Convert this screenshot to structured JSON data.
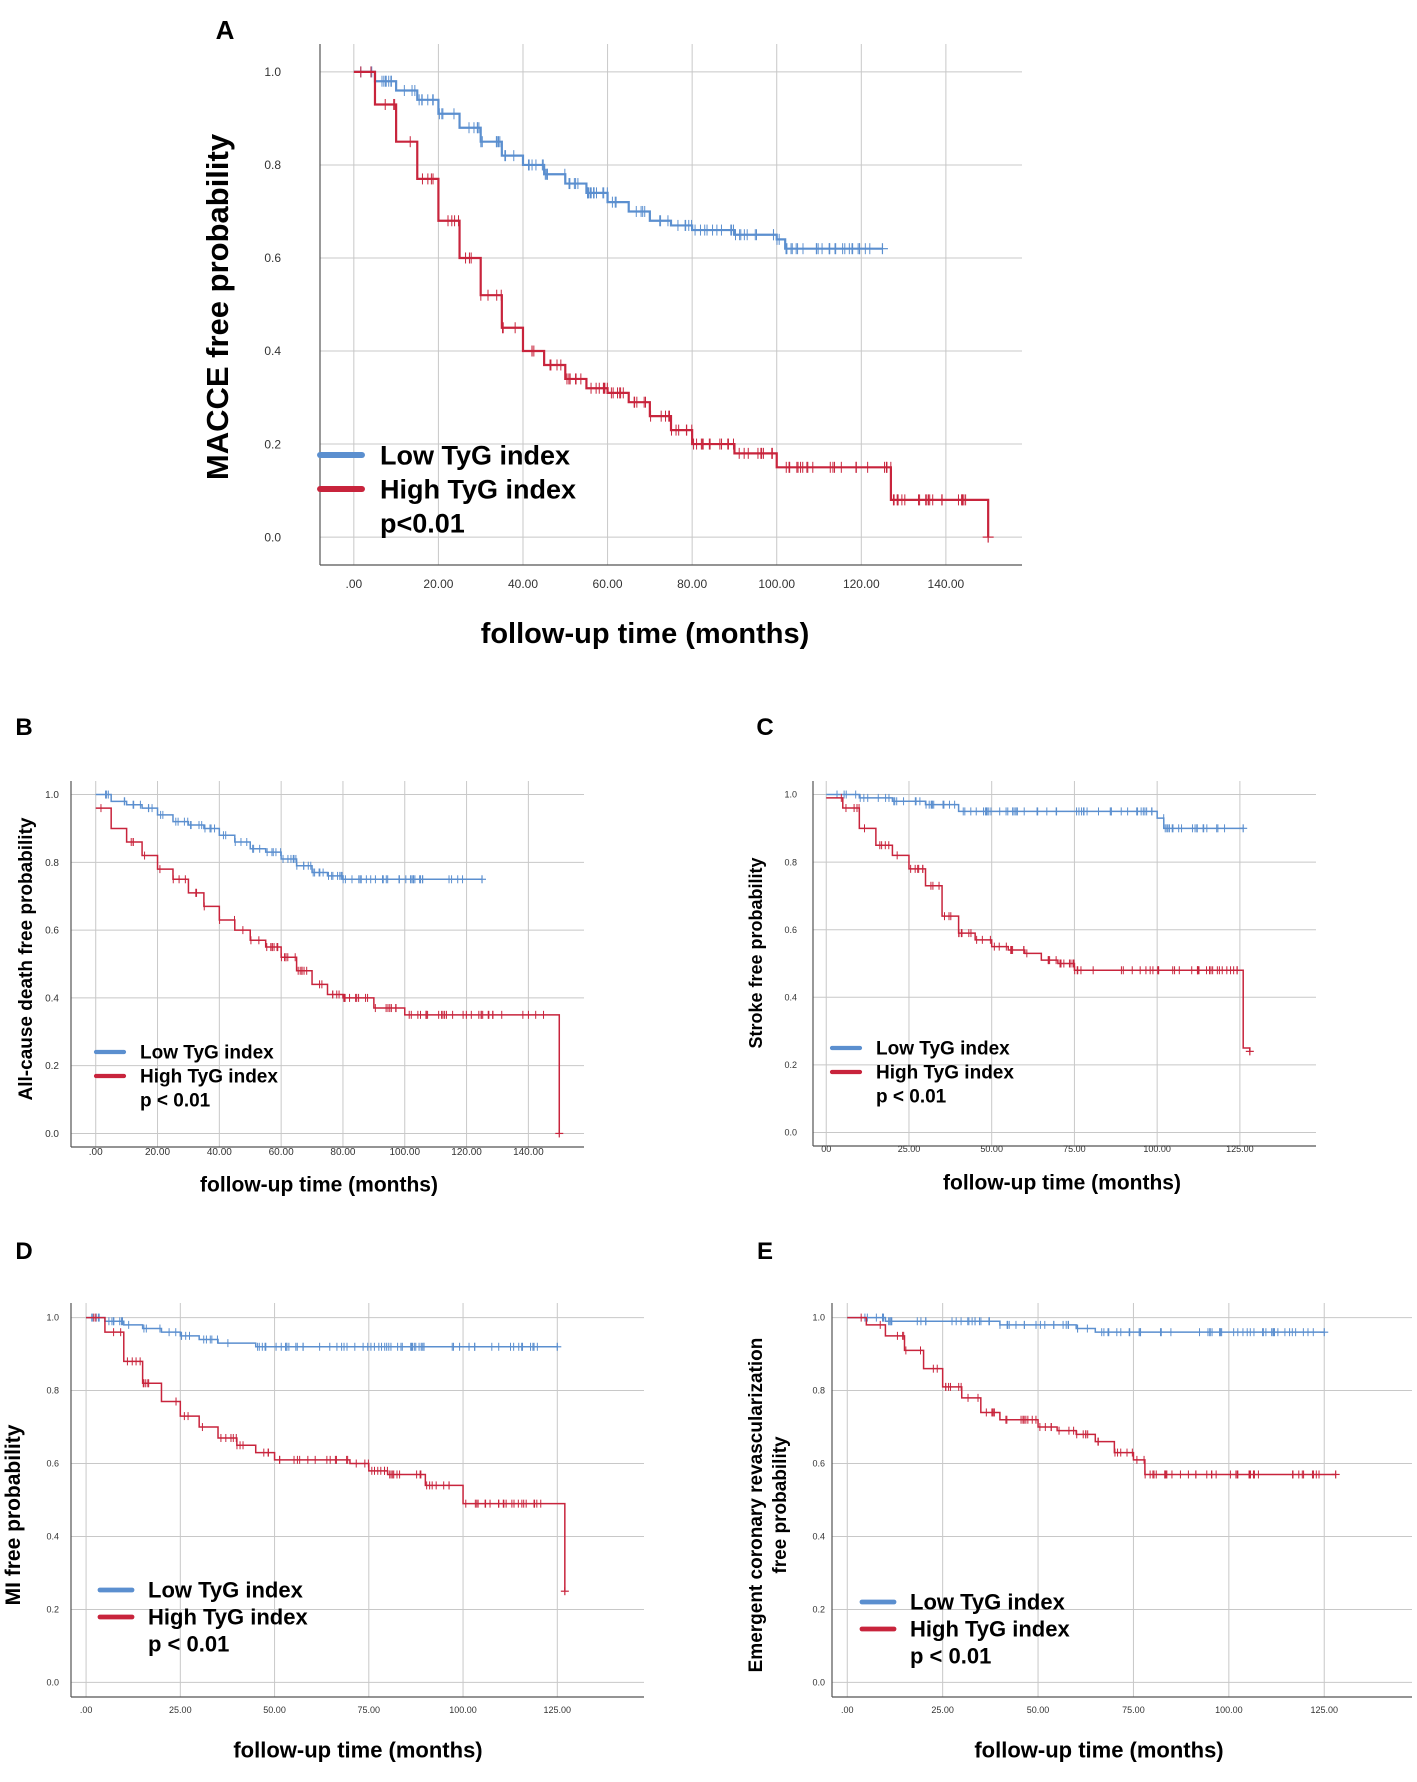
{
  "colors": {
    "low": "#5b8fcf",
    "high": "#c8243c",
    "grid": "#c8c8c8",
    "axis": "#555555",
    "text": "#000000"
  },
  "chart_data": [
    {
      "panel": "A",
      "type": "line",
      "subtype": "kaplan-meier",
      "title": "",
      "xlabel": "follow-up time (months)",
      "ylabel": "MACCE free probability",
      "xlim": [
        -8,
        158
      ],
      "ylim": [
        -0.06,
        1.06
      ],
      "xticks": [
        0,
        20,
        40,
        60,
        80,
        100,
        120,
        140
      ],
      "xtick_labels": [
        ".00",
        "20.00",
        "40.00",
        "60.00",
        "80.00",
        "100.00",
        "120.00",
        "140.00"
      ],
      "yticks": [
        0,
        0.2,
        0.4,
        0.6,
        0.8,
        1.0
      ],
      "ytick_labels": [
        "0.0",
        "0.2",
        "0.4",
        "0.6",
        "0.8",
        "1.0"
      ],
      "legend": [
        "Low TyG index",
        "High TyG index"
      ],
      "pvalue": "p<0.01",
      "series": [
        {
          "name": "Low TyG index",
          "color": "#5b8fcf",
          "x": [
            0,
            5,
            10,
            15,
            20,
            25,
            30,
            35,
            40,
            45,
            50,
            55,
            60,
            65,
            70,
            75,
            80,
            90,
            100,
            102,
            125
          ],
          "y": [
            1.0,
            0.98,
            0.96,
            0.94,
            0.91,
            0.88,
            0.85,
            0.82,
            0.8,
            0.78,
            0.76,
            0.74,
            0.72,
            0.7,
            0.68,
            0.67,
            0.66,
            0.65,
            0.64,
            0.62,
            0.62
          ]
        },
        {
          "name": "High TyG index",
          "color": "#c8243c",
          "x": [
            0,
            5,
            10,
            15,
            20,
            25,
            30,
            35,
            40,
            45,
            50,
            55,
            60,
            65,
            70,
            75,
            80,
            90,
            100,
            127,
            150
          ],
          "y": [
            1.0,
            0.93,
            0.85,
            0.77,
            0.68,
            0.6,
            0.52,
            0.45,
            0.4,
            0.37,
            0.34,
            0.32,
            0.31,
            0.29,
            0.26,
            0.23,
            0.2,
            0.18,
            0.15,
            0.08,
            0.0
          ]
        }
      ]
    },
    {
      "panel": "B",
      "type": "line",
      "subtype": "kaplan-meier",
      "title": "",
      "xlabel": "follow-up time (months)",
      "ylabel": "All-cause death free probability",
      "xlim": [
        -8,
        158
      ],
      "ylim": [
        -0.04,
        1.04
      ],
      "xticks": [
        0,
        20,
        40,
        60,
        80,
        100,
        120,
        140
      ],
      "xtick_labels": [
        ".00",
        "20.00",
        "40.00",
        "60.00",
        "80.00",
        "100.00",
        "120.00",
        "140.00"
      ],
      "yticks": [
        0,
        0.2,
        0.4,
        0.6,
        0.8,
        1.0
      ],
      "ytick_labels": [
        "0.0",
        "0.2",
        "0.4",
        "0.6",
        "0.8",
        "1.0"
      ],
      "legend": [
        "Low TyG index",
        "High TyG index"
      ],
      "pvalue": "p < 0.01",
      "series": [
        {
          "name": "Low TyG index",
          "color": "#5b8fcf",
          "x": [
            0,
            5,
            10,
            15,
            20,
            25,
            30,
            35,
            40,
            45,
            50,
            55,
            60,
            65,
            70,
            75,
            80,
            90,
            125
          ],
          "y": [
            1.0,
            0.98,
            0.97,
            0.96,
            0.94,
            0.92,
            0.91,
            0.9,
            0.88,
            0.86,
            0.84,
            0.83,
            0.81,
            0.79,
            0.77,
            0.76,
            0.75,
            0.75,
            0.75
          ]
        },
        {
          "name": "High TyG index",
          "color": "#c8243c",
          "x": [
            0,
            5,
            10,
            15,
            20,
            25,
            30,
            35,
            40,
            45,
            50,
            55,
            60,
            65,
            70,
            75,
            80,
            90,
            100,
            150
          ],
          "y": [
            0.96,
            0.9,
            0.86,
            0.82,
            0.78,
            0.75,
            0.71,
            0.67,
            0.63,
            0.6,
            0.57,
            0.55,
            0.52,
            0.48,
            0.44,
            0.41,
            0.4,
            0.37,
            0.35,
            0.0
          ]
        }
      ]
    },
    {
      "panel": "C",
      "type": "line",
      "subtype": "kaplan-meier",
      "title": "",
      "xlabel": "follow-up time (months)",
      "ylabel": "Stroke free probability",
      "xlim": [
        -4,
        148
      ],
      "ylim": [
        -0.04,
        1.04
      ],
      "xticks": [
        0,
        25,
        50,
        75,
        100,
        125
      ],
      "xtick_labels": [
        "00",
        "25.00",
        "50.00",
        "75.00",
        "100.00",
        "125.00"
      ],
      "yticks": [
        0,
        0.2,
        0.4,
        0.6,
        0.8,
        1.0
      ],
      "ytick_labels": [
        "0.0",
        "0.2",
        "0.4",
        "0.6",
        "0.8",
        "1.0"
      ],
      "legend": [
        "Low TyG index",
        "High TyG index"
      ],
      "pvalue": "p < 0.01",
      "series": [
        {
          "name": "Low TyG index",
          "color": "#5b8fcf",
          "x": [
            0,
            10,
            20,
            30,
            40,
            50,
            75,
            88,
            100,
            102,
            126
          ],
          "y": [
            1.0,
            0.99,
            0.98,
            0.97,
            0.95,
            0.95,
            0.95,
            0.95,
            0.93,
            0.9,
            0.9
          ]
        },
        {
          "name": "High TyG index",
          "color": "#c8243c",
          "x": [
            0,
            5,
            10,
            15,
            20,
            25,
            30,
            35,
            40,
            45,
            50,
            55,
            60,
            65,
            70,
            75,
            80,
            90,
            100,
            126,
            128
          ],
          "y": [
            0.99,
            0.96,
            0.9,
            0.85,
            0.82,
            0.78,
            0.73,
            0.64,
            0.59,
            0.57,
            0.55,
            0.54,
            0.53,
            0.51,
            0.5,
            0.48,
            0.48,
            0.48,
            0.48,
            0.25,
            0.24
          ]
        }
      ]
    },
    {
      "panel": "D",
      "type": "line",
      "subtype": "kaplan-meier",
      "title": "",
      "xlabel": "follow-up time (months)",
      "ylabel": "MI free probability",
      "xlim": [
        -4,
        148
      ],
      "ylim": [
        -0.04,
        1.04
      ],
      "xticks": [
        0,
        25,
        50,
        75,
        100,
        125
      ],
      "xtick_labels": [
        ".00",
        "25.00",
        "50.00",
        "75.00",
        "100.00",
        "125.00"
      ],
      "yticks": [
        0,
        0.2,
        0.4,
        0.6,
        0.8,
        1.0
      ],
      "ytick_labels": [
        "0.0",
        "0.2",
        "0.4",
        "0.6",
        "0.8",
        "1.0"
      ],
      "legend": [
        "Low TyG index",
        "High TyG index"
      ],
      "pvalue": "p < 0.01",
      "series": [
        {
          "name": "Low TyG index",
          "color": "#5b8fcf",
          "x": [
            0,
            5,
            10,
            15,
            20,
            25,
            30,
            35,
            40,
            45,
            50,
            75,
            100,
            125
          ],
          "y": [
            1.0,
            0.99,
            0.98,
            0.97,
            0.96,
            0.95,
            0.94,
            0.93,
            0.93,
            0.92,
            0.92,
            0.92,
            0.92,
            0.92
          ]
        },
        {
          "name": "High TyG index",
          "color": "#c8243c",
          "x": [
            0,
            5,
            10,
            15,
            20,
            25,
            30,
            35,
            40,
            45,
            50,
            60,
            70,
            75,
            80,
            90,
            100,
            125,
            127
          ],
          "y": [
            1.0,
            0.96,
            0.88,
            0.82,
            0.77,
            0.73,
            0.7,
            0.67,
            0.65,
            0.63,
            0.61,
            0.61,
            0.6,
            0.58,
            0.57,
            0.54,
            0.49,
            0.49,
            0.25
          ]
        }
      ]
    },
    {
      "panel": "E",
      "type": "line",
      "subtype": "kaplan-meier",
      "title": "",
      "xlabel": "follow-up time (months)",
      "ylabel": "Emergent coronary revascularization free probability",
      "xlim": [
        -4,
        148
      ],
      "ylim": [
        -0.04,
        1.04
      ],
      "xticks": [
        0,
        25,
        50,
        75,
        100,
        125
      ],
      "xtick_labels": [
        ".00",
        "25.00",
        "50.00",
        "75.00",
        "100.00",
        "125.00"
      ],
      "yticks": [
        0,
        0.2,
        0.4,
        0.6,
        0.8,
        1.0
      ],
      "ytick_labels": [
        "0.0",
        "0.2",
        "0.4",
        "0.6",
        "0.8",
        "1.0"
      ],
      "legend": [
        "Low TyG index",
        "High TyG index"
      ],
      "pvalue": "p < 0.01",
      "series": [
        {
          "name": "Low TyG index",
          "color": "#5b8fcf",
          "x": [
            0,
            10,
            20,
            30,
            40,
            50,
            60,
            65,
            75,
            100,
            125
          ],
          "y": [
            1.0,
            0.99,
            0.99,
            0.99,
            0.98,
            0.98,
            0.97,
            0.96,
            0.96,
            0.96,
            0.96
          ]
        },
        {
          "name": "High TyG index",
          "color": "#c8243c",
          "x": [
            0,
            5,
            10,
            15,
            20,
            25,
            30,
            35,
            40,
            50,
            55,
            60,
            65,
            70,
            75,
            78,
            100,
            128
          ],
          "y": [
            1.0,
            0.98,
            0.95,
            0.91,
            0.86,
            0.81,
            0.78,
            0.74,
            0.72,
            0.7,
            0.69,
            0.68,
            0.66,
            0.63,
            0.61,
            0.57,
            0.57,
            0.57
          ]
        }
      ]
    }
  ]
}
